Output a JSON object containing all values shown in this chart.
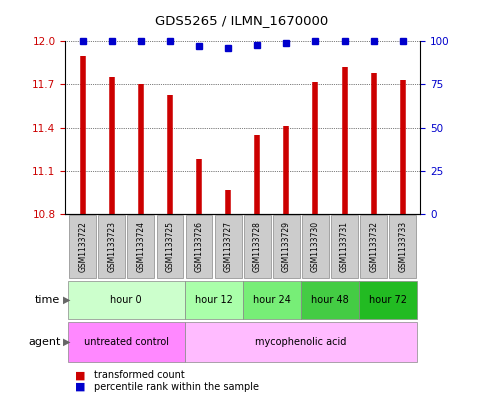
{
  "title": "GDS5265 / ILMN_1670000",
  "samples": [
    "GSM1133722",
    "GSM1133723",
    "GSM1133724",
    "GSM1133725",
    "GSM1133726",
    "GSM1133727",
    "GSM1133728",
    "GSM1133729",
    "GSM1133730",
    "GSM1133731",
    "GSM1133732",
    "GSM1133733"
  ],
  "bar_values": [
    11.9,
    11.75,
    11.7,
    11.63,
    11.18,
    10.97,
    11.35,
    11.41,
    11.72,
    11.82,
    11.78,
    11.73
  ],
  "percentile_values": [
    100,
    100,
    100,
    100,
    97,
    96,
    98,
    99,
    100,
    100,
    100,
    100
  ],
  "bar_color": "#cc0000",
  "percentile_color": "#0000cc",
  "ylim_left": [
    10.8,
    12.0
  ],
  "ylim_right": [
    0,
    100
  ],
  "yticks_left": [
    10.8,
    11.1,
    11.4,
    11.7,
    12.0
  ],
  "yticks_right": [
    0,
    25,
    50,
    75,
    100
  ],
  "time_groups": [
    {
      "label": "hour 0",
      "start": 0,
      "end": 3,
      "color": "#ccffcc"
    },
    {
      "label": "hour 12",
      "start": 4,
      "end": 5,
      "color": "#aaffaa"
    },
    {
      "label": "hour 24",
      "start": 6,
      "end": 7,
      "color": "#77ee77"
    },
    {
      "label": "hour 48",
      "start": 8,
      "end": 9,
      "color": "#44cc44"
    },
    {
      "label": "hour 72",
      "start": 10,
      "end": 11,
      "color": "#22bb22"
    }
  ],
  "agent_groups": [
    {
      "label": "untreated control",
      "start": 0,
      "end": 3,
      "color": "#ff88ff"
    },
    {
      "label": "mycophenolic acid",
      "start": 4,
      "end": 11,
      "color": "#ffbbff"
    }
  ],
  "time_label": "time",
  "agent_label": "agent",
  "legend_bar_label": "transformed count",
  "legend_pct_label": "percentile rank within the sample",
  "background_color": "#ffffff",
  "grid_color": "#000000",
  "tick_label_color_left": "#cc0000",
  "tick_label_color_right": "#0000cc",
  "sample_box_color": "#cccccc",
  "sample_box_edge": "#888888"
}
